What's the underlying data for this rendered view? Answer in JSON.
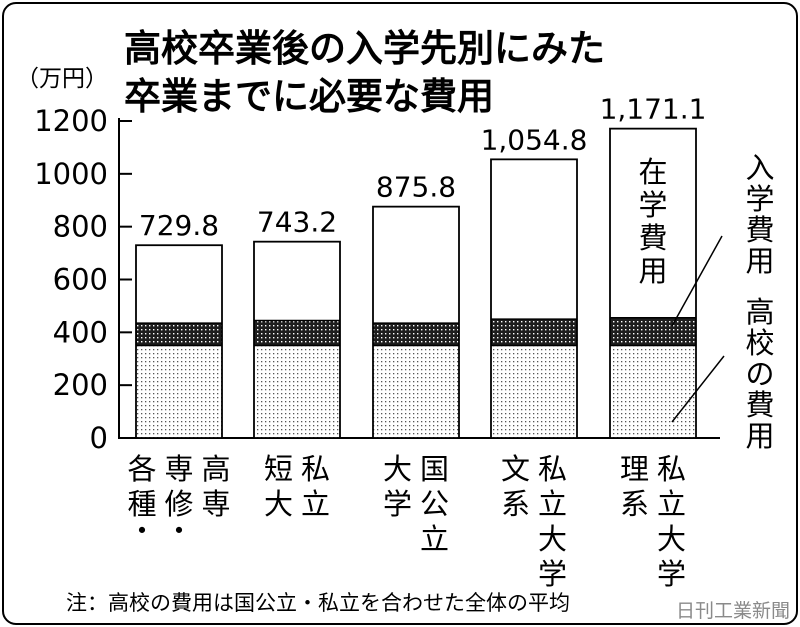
{
  "chart_data": {
    "type": "bar",
    "stacked": true,
    "title": [
      "高校卒業後の入学先別にみた",
      "卒業までに必要な費用"
    ],
    "unit_label": "（万円）",
    "ylim": [
      0,
      1200
    ],
    "y_ticks": [
      "0",
      "200",
      "400",
      "600",
      "800",
      "1000",
      "1200"
    ],
    "categories": [
      [
        "高専",
        "専修・",
        "各種・"
      ],
      [
        "私立",
        "短大"
      ],
      [
        "国公立",
        "大学"
      ],
      [
        "私立大学",
        "文系"
      ],
      [
        "私立大学",
        "理系"
      ]
    ],
    "totals_labels": [
      "729.8",
      "743.2",
      "875.8",
      "1,054.8",
      "1,171.1"
    ],
    "totals": [
      729.8,
      743.2,
      875.8,
      1054.8,
      1171.1
    ],
    "series": [
      {
        "name": "高校の費用",
        "values": [
          350,
          350,
          350,
          350,
          350
        ],
        "pattern": "light-dots"
      },
      {
        "name": "入学費用",
        "values": [
          85,
          95,
          85,
          100,
          105
        ],
        "pattern": "dark-dots"
      },
      {
        "name": "在学費用",
        "values": [
          294.8,
          298.2,
          440.8,
          604.8,
          716.1
        ],
        "pattern": "white"
      }
    ],
    "inbar_label": "在学費用",
    "legend_entries": [
      "入学費用",
      "高校の費用"
    ],
    "legend_placement": "right",
    "grid": false
  },
  "note": "注：高校の費用は国公立・私立を合わせた全体の平均",
  "credit": "日刊工業新聞"
}
